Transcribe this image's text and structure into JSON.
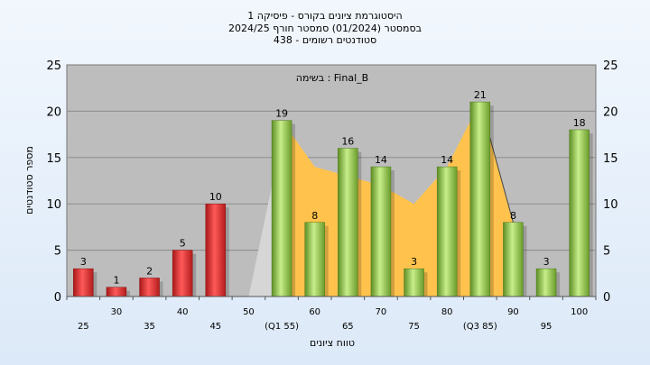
{
  "chart_data": {
    "type": "bar",
    "title_lines": [
      "היסטוגרמת ציונים בקורס - פיסיקה 1",
      "בסמסטר  (01/2024)  סמסטר חורף 2024/25",
      "סטודנטים רשומים - 438"
    ],
    "annotation": "בשימה : Final_B",
    "xlabel": "טווח ציונים",
    "ylabel": "מספר סטודנטים",
    "ylim": [
      0,
      25
    ],
    "y_ticks": [
      0,
      5,
      10,
      15,
      20,
      25
    ],
    "grid": true,
    "categories": [
      "25",
      "30",
      "35",
      "40",
      "45",
      "50",
      "55",
      "60",
      "65",
      "70",
      "75",
      "80",
      "85",
      "90",
      "95",
      "100"
    ],
    "x_tick_labels": [
      "25",
      "30",
      "35",
      "40",
      "45",
      "50",
      "(Q1 55)",
      "60",
      "65",
      "70",
      "75",
      "80",
      "(Q3 85)",
      "90",
      "95",
      "100"
    ],
    "values": [
      3,
      1,
      2,
      5,
      10,
      0,
      19,
      8,
      16,
      14,
      3,
      14,
      21,
      8,
      3,
      18
    ],
    "data_labels": [
      "3",
      "1",
      "2",
      "5",
      "10",
      "",
      "19",
      "8",
      "16",
      "14",
      "3",
      "14",
      "21",
      "8",
      "3",
      "18"
    ],
    "failing_below": 55,
    "background_curves": {
      "gray": [
        [
          50,
          0
        ],
        [
          55,
          17
        ],
        [
          60,
          13
        ],
        [
          65,
          12
        ],
        [
          70,
          10
        ],
        [
          75,
          8
        ]
      ],
      "yellow": [
        [
          55,
          19
        ],
        [
          60,
          14
        ],
        [
          65,
          13
        ],
        [
          70,
          12
        ],
        [
          75,
          10
        ],
        [
          80,
          14
        ],
        [
          85,
          21
        ],
        [
          90,
          8
        ]
      ]
    },
    "colors": {
      "fail_bar": "#e03030",
      "pass_bar": "#8cc63f",
      "plot_bg": "#bdbdbd",
      "gray_area": "#d6d6d6",
      "yellow_area": "#ffc34d"
    }
  }
}
